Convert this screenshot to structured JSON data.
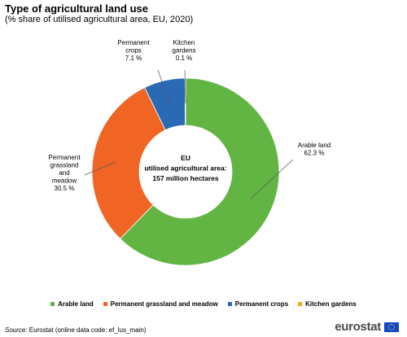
{
  "header": {
    "title": "Type of agricultural land use",
    "subtitle": "(% share of utilised agricultural  area, EU, 2020)"
  },
  "chart_data": {
    "type": "pie",
    "variant": "donut",
    "title": "Type of agricultural land use",
    "subtitle": "(% share of utilised agricultural  area, EU, 2020)",
    "center_label": [
      "EU",
      "utilised agricultural area:",
      "157 million hectares"
    ],
    "slices": [
      {
        "name": "Arable land",
        "value": 62.3,
        "label_lines": [
          "Arable land",
          "62.3 %"
        ],
        "color": "#62b543"
      },
      {
        "name": "Permanent grassland and meadow",
        "value": 30.5,
        "label_lines": [
          "Permanent",
          "grassland",
          "and",
          "meadow",
          "30.5 %"
        ],
        "color": "#f06424"
      },
      {
        "name": "Permanent crops",
        "value": 7.1,
        "label_lines": [
          "Permanent",
          "crops",
          "7.1 %"
        ],
        "color": "#2a6ab5"
      },
      {
        "name": "Kitchen gardens",
        "value": 0.1,
        "label_lines": [
          "Kitchen",
          "gardens",
          "0.1 %"
        ],
        "color": "#f7a81c"
      }
    ],
    "legend_position": "bottom"
  },
  "footer": {
    "source_label": "Source:",
    "source_text": " Eurostat (online data code: ef_lus_main)",
    "logo_text": "eurostat"
  }
}
